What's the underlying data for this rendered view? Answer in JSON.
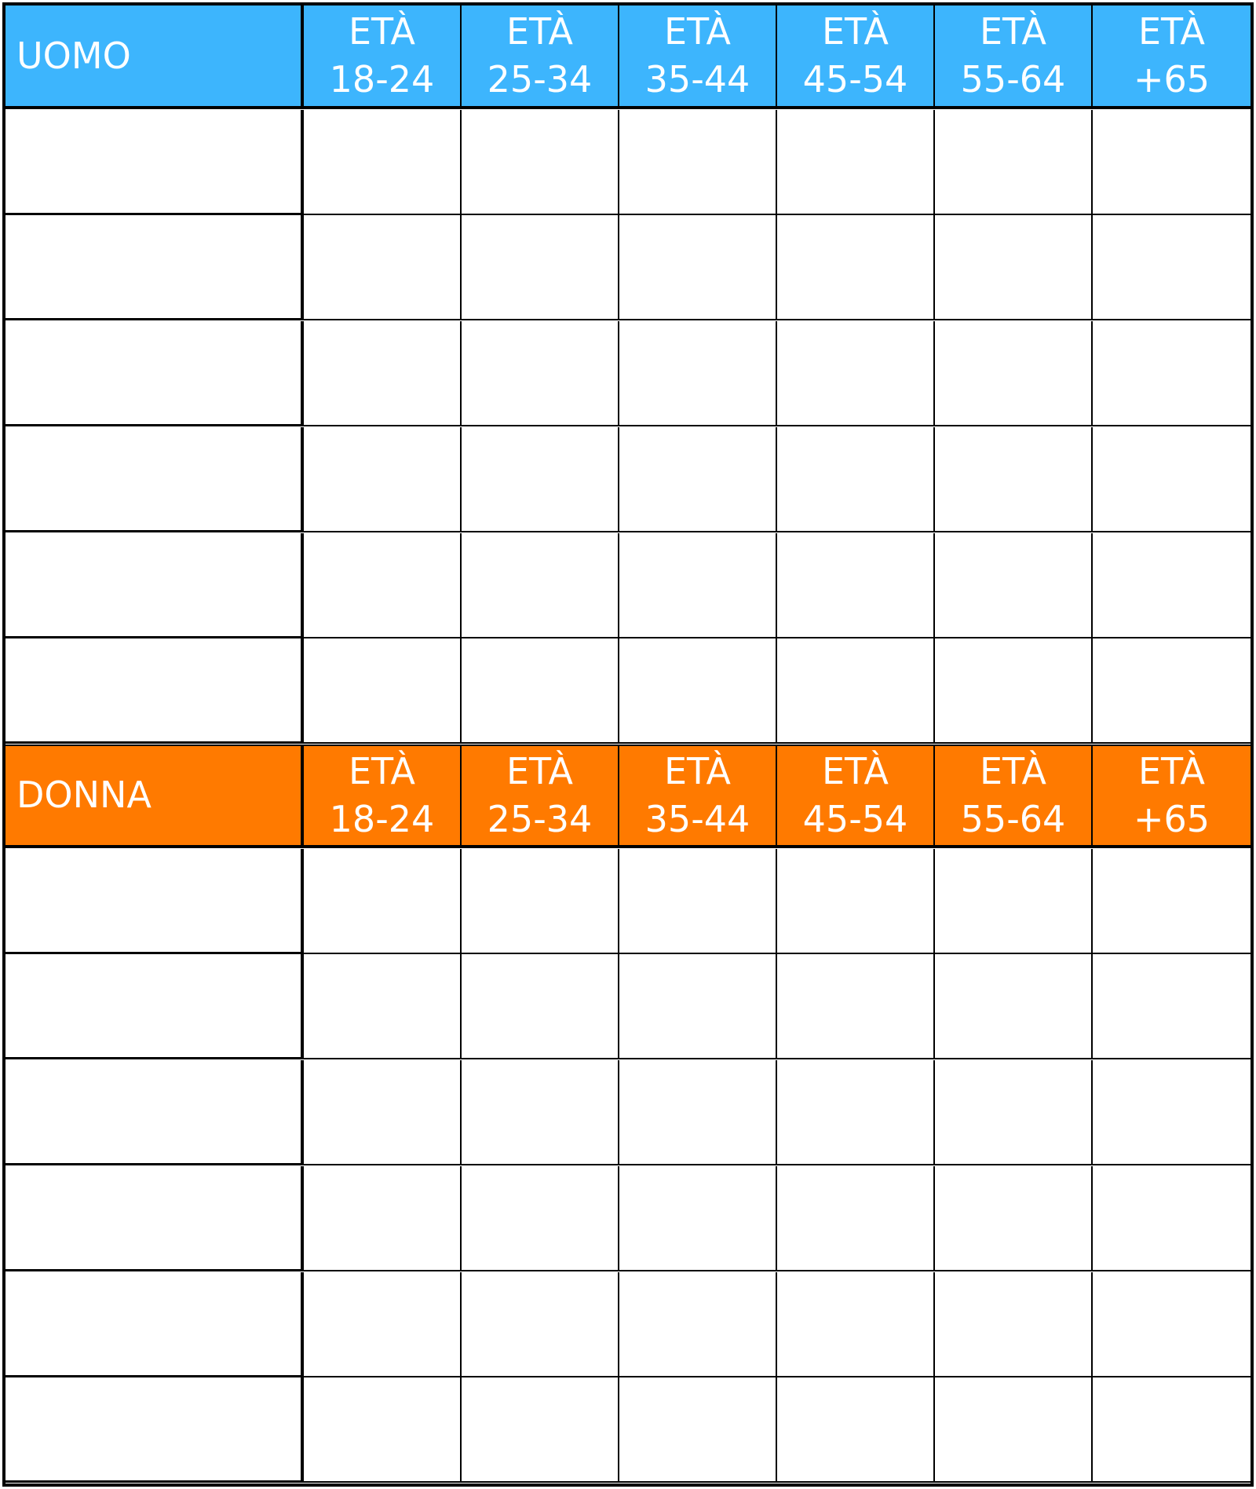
{
  "colors": {
    "male_header": "#3db5fd",
    "female_header": "#ff7a00"
  },
  "sections": [
    {
      "title": "UOMO",
      "age_groups": [
        {
          "line1": "ETÀ",
          "line2": "18-24"
        },
        {
          "line1": "ETÀ",
          "line2": "25-34"
        },
        {
          "line1": "ETÀ",
          "line2": "35-44"
        },
        {
          "line1": "ETÀ",
          "line2": "45-54"
        },
        {
          "line1": "ETÀ",
          "line2": "55-64"
        },
        {
          "line1": "ETÀ",
          "line2": "+65"
        }
      ],
      "rows": [
        [
          "",
          "",
          "",
          "",
          "",
          "",
          ""
        ],
        [
          "",
          "",
          "",
          "",
          "",
          "",
          ""
        ],
        [
          "",
          "",
          "",
          "",
          "",
          "",
          ""
        ],
        [
          "",
          "",
          "",
          "",
          "",
          "",
          ""
        ],
        [
          "",
          "",
          "",
          "",
          "",
          "",
          ""
        ],
        [
          "",
          "",
          "",
          "",
          "",
          "",
          ""
        ]
      ]
    },
    {
      "title": "DONNA",
      "age_groups": [
        {
          "line1": "ETÀ",
          "line2": "18-24"
        },
        {
          "line1": "ETÀ",
          "line2": "25-34"
        },
        {
          "line1": "ETÀ",
          "line2": "35-44"
        },
        {
          "line1": "ETÀ",
          "line2": "45-54"
        },
        {
          "line1": "ETÀ",
          "line2": "55-64"
        },
        {
          "line1": "ETÀ",
          "line2": "+65"
        }
      ],
      "rows": [
        [
          "",
          "",
          "",
          "",
          "",
          "",
          ""
        ],
        [
          "",
          "",
          "",
          "",
          "",
          "",
          ""
        ],
        [
          "",
          "",
          "",
          "",
          "",
          "",
          ""
        ],
        [
          "",
          "",
          "",
          "",
          "",
          "",
          ""
        ],
        [
          "",
          "",
          "",
          "",
          "",
          "",
          ""
        ],
        [
          "",
          "",
          "",
          "",
          "",
          "",
          ""
        ]
      ]
    }
  ]
}
